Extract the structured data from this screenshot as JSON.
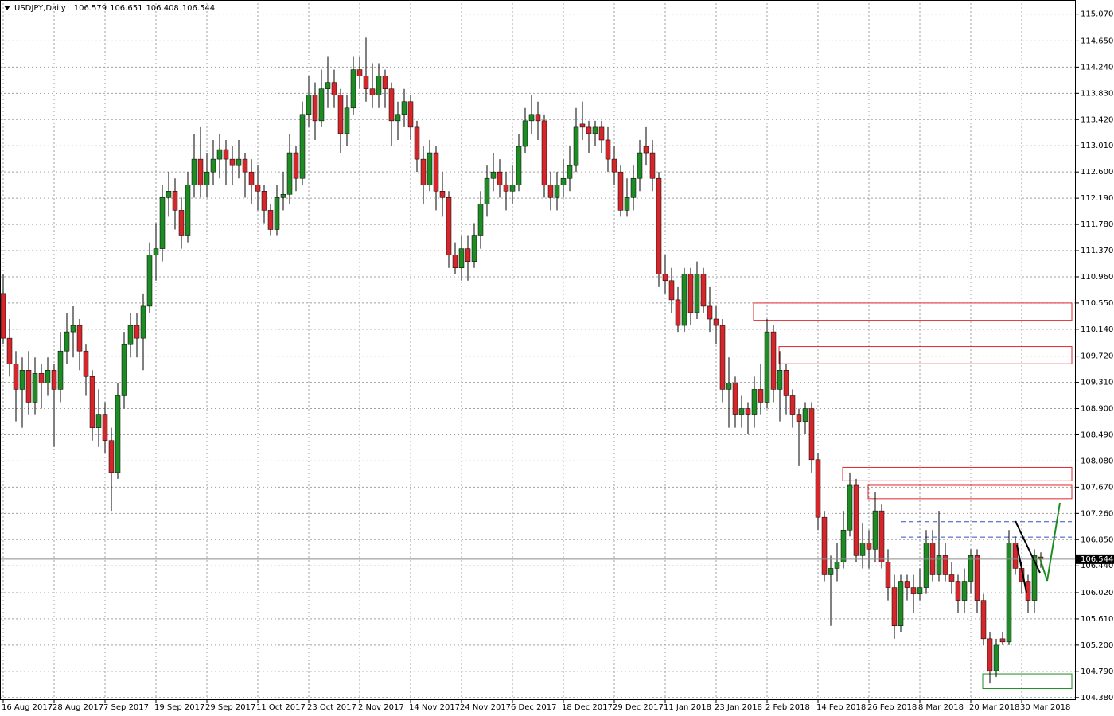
{
  "chart_data": {
    "type": "candlestick",
    "symbol": "USDJPY,Daily",
    "quote": [
      106.579,
      106.651,
      106.408,
      106.544
    ],
    "last_price": 106.544,
    "up_color": "#1f8b24",
    "down_color": "#d3272b",
    "grid": true,
    "ylim": [
      104.34,
      115.24
    ],
    "yticks": [
      {
        "value": 115.07,
        "label": "115.070"
      },
      {
        "value": 114.65,
        "label": "114.650"
      },
      {
        "value": 114.24,
        "label": "114.240"
      },
      {
        "value": 113.83,
        "label": "113.830"
      },
      {
        "value": 113.42,
        "label": "113.420"
      },
      {
        "value": 113.01,
        "label": "113.010"
      },
      {
        "value": 112.6,
        "label": "112.600"
      },
      {
        "value": 112.19,
        "label": "112.190"
      },
      {
        "value": 111.78,
        "label": "111.780"
      },
      {
        "value": 111.37,
        "label": "111.370"
      },
      {
        "value": 110.96,
        "label": "110.960"
      },
      {
        "value": 110.55,
        "label": "110.550"
      },
      {
        "value": 110.14,
        "label": "110.140"
      },
      {
        "value": 109.72,
        "label": "109.720"
      },
      {
        "value": 109.31,
        "label": "109.310"
      },
      {
        "value": 108.9,
        "label": "108.900"
      },
      {
        "value": 108.49,
        "label": "108.490"
      },
      {
        "value": 108.08,
        "label": "108.080"
      },
      {
        "value": 107.67,
        "label": "107.670"
      },
      {
        "value": 107.26,
        "label": "107.260"
      },
      {
        "value": 106.85,
        "label": "106.850"
      },
      {
        "value": 106.44,
        "label": "106.440"
      },
      {
        "value": 106.02,
        "label": "106.020"
      },
      {
        "value": 105.61,
        "label": "105.610"
      },
      {
        "value": 105.2,
        "label": "105.200"
      },
      {
        "value": 104.79,
        "label": "104.790"
      },
      {
        "value": 104.38,
        "label": "104.380"
      }
    ],
    "categories": [
      "16 Aug 2017",
      null,
      null,
      null,
      null,
      null,
      null,
      null,
      "28 Aug 2017",
      null,
      null,
      null,
      null,
      null,
      null,
      null,
      "7 Sep 2017",
      null,
      null,
      null,
      null,
      null,
      null,
      null,
      "19 Sep 2017",
      null,
      null,
      null,
      null,
      null,
      null,
      null,
      "29 Sep 2017",
      null,
      null,
      null,
      null,
      null,
      null,
      null,
      "11 Oct 2017",
      null,
      null,
      null,
      null,
      null,
      null,
      null,
      "23 Oct 2017",
      null,
      null,
      null,
      null,
      null,
      null,
      null,
      "2 Nov 2017",
      null,
      null,
      null,
      null,
      null,
      null,
      null,
      "14 Nov 2017",
      null,
      null,
      null,
      null,
      null,
      null,
      null,
      "24 Nov 2017",
      null,
      null,
      null,
      null,
      null,
      null,
      null,
      "6 Dec 2017",
      null,
      null,
      null,
      null,
      null,
      null,
      null,
      "18 Dec 2017",
      null,
      null,
      null,
      null,
      null,
      null,
      null,
      "29 Dec 2017",
      null,
      null,
      null,
      null,
      null,
      null,
      null,
      "11 Jan 2018",
      null,
      null,
      null,
      null,
      null,
      null,
      null,
      "23 Jan 2018",
      null,
      null,
      null,
      null,
      null,
      null,
      null,
      "2 Feb 2018",
      null,
      null,
      null,
      null,
      null,
      null,
      null,
      "14 Feb 2018",
      null,
      null,
      null,
      null,
      null,
      null,
      null,
      "26 Feb 2018",
      null,
      null,
      null,
      null,
      null,
      null,
      null,
      "8 Mar 2018",
      null,
      null,
      null,
      null,
      null,
      null,
      null,
      "20 Mar 2018",
      null,
      null,
      null,
      null,
      null,
      null,
      null,
      "30 Mar 2018",
      null,
      null,
      null
    ],
    "ohlc": [
      [
        110.7,
        111.0,
        109.9,
        110.0
      ],
      [
        110.0,
        110.3,
        109.4,
        109.6
      ],
      [
        109.6,
        109.8,
        108.7,
        109.2
      ],
      [
        109.2,
        109.7,
        108.6,
        109.5
      ],
      [
        109.5,
        109.8,
        108.8,
        109.0
      ],
      [
        109.0,
        109.7,
        108.8,
        109.45
      ],
      [
        109.45,
        109.6,
        108.9,
        109.3
      ],
      [
        109.3,
        109.7,
        109.1,
        109.5
      ],
      [
        109.5,
        109.6,
        108.3,
        109.2
      ],
      [
        109.2,
        110.1,
        109.0,
        109.8
      ],
      [
        109.8,
        110.4,
        109.6,
        110.1
      ],
      [
        110.1,
        110.5,
        109.7,
        110.2
      ],
      [
        110.2,
        110.3,
        109.5,
        109.8
      ],
      [
        109.8,
        109.9,
        109.1,
        109.4
      ],
      [
        109.4,
        109.5,
        108.4,
        108.6
      ],
      [
        108.6,
        109.2,
        108.3,
        108.8
      ],
      [
        108.8,
        109.0,
        108.2,
        108.4
      ],
      [
        108.4,
        108.6,
        107.3,
        107.9
      ],
      [
        107.9,
        109.3,
        107.8,
        109.1
      ],
      [
        109.1,
        110.1,
        108.9,
        109.9
      ],
      [
        109.9,
        110.4,
        109.7,
        110.2
      ],
      [
        110.2,
        110.4,
        109.7,
        110.0
      ],
      [
        110.0,
        110.7,
        109.5,
        110.5
      ],
      [
        110.5,
        111.5,
        110.4,
        111.3
      ],
      [
        111.3,
        111.8,
        110.9,
        111.4
      ],
      [
        111.4,
        112.4,
        111.2,
        112.2
      ],
      [
        112.2,
        112.6,
        111.9,
        112.3
      ],
      [
        112.3,
        112.5,
        111.7,
        112.0
      ],
      [
        112.0,
        112.2,
        111.4,
        111.6
      ],
      [
        111.6,
        112.6,
        111.5,
        112.4
      ],
      [
        112.4,
        113.2,
        112.2,
        112.8
      ],
      [
        112.8,
        113.3,
        112.2,
        112.4
      ],
      [
        112.4,
        112.9,
        112.2,
        112.6
      ],
      [
        112.6,
        113.1,
        112.4,
        112.8
      ],
      [
        112.8,
        113.2,
        112.5,
        112.95
      ],
      [
        112.95,
        113.1,
        112.4,
        112.8
      ],
      [
        112.8,
        113.0,
        112.4,
        112.7
      ],
      [
        112.7,
        113.1,
        112.5,
        112.8
      ],
      [
        112.8,
        112.9,
        112.2,
        112.6
      ],
      [
        112.6,
        112.8,
        112.1,
        112.4
      ],
      [
        112.4,
        112.7,
        112.0,
        112.3
      ],
      [
        112.3,
        112.4,
        111.8,
        112.0
      ],
      [
        112.0,
        112.1,
        111.6,
        111.7
      ],
      [
        111.7,
        112.4,
        111.6,
        112.2
      ],
      [
        112.2,
        112.6,
        112.0,
        112.25
      ],
      [
        112.25,
        113.2,
        112.1,
        112.9
      ],
      [
        112.9,
        113.0,
        112.3,
        112.5
      ],
      [
        112.5,
        113.7,
        112.4,
        113.5
      ],
      [
        113.5,
        114.1,
        113.3,
        113.8
      ],
      [
        113.8,
        114.0,
        113.1,
        113.4
      ],
      [
        113.4,
        114.2,
        113.3,
        113.9
      ],
      [
        113.9,
        114.4,
        113.6,
        114.0
      ],
      [
        114.0,
        114.2,
        113.6,
        113.8
      ],
      [
        113.8,
        113.9,
        112.9,
        113.2
      ],
      [
        113.2,
        113.8,
        113.0,
        113.6
      ],
      [
        113.6,
        114.4,
        113.5,
        114.2
      ],
      [
        114.2,
        114.4,
        113.9,
        114.1
      ],
      [
        114.1,
        114.7,
        113.7,
        113.9
      ],
      [
        113.9,
        114.3,
        113.6,
        113.8
      ],
      [
        113.8,
        114.3,
        113.6,
        114.1
      ],
      [
        114.1,
        114.2,
        113.6,
        113.9
      ],
      [
        113.9,
        114.0,
        113.0,
        113.4
      ],
      [
        113.4,
        113.7,
        113.1,
        113.5
      ],
      [
        113.5,
        113.9,
        113.3,
        113.7
      ],
      [
        113.7,
        113.8,
        113.1,
        113.3
      ],
      [
        113.3,
        113.4,
        112.6,
        112.8
      ],
      [
        112.8,
        113.0,
        112.1,
        112.4
      ],
      [
        112.4,
        113.1,
        112.3,
        112.9
      ],
      [
        112.9,
        113.0,
        112.0,
        112.3
      ],
      [
        112.3,
        112.6,
        111.9,
        112.2
      ],
      [
        112.2,
        112.3,
        111.1,
        111.3
      ],
      [
        111.3,
        111.5,
        111.0,
        111.1
      ],
      [
        111.1,
        111.6,
        110.9,
        111.4
      ],
      [
        111.4,
        111.6,
        110.9,
        111.2
      ],
      [
        111.2,
        111.8,
        111.1,
        111.6
      ],
      [
        111.6,
        112.3,
        111.4,
        112.1
      ],
      [
        112.1,
        112.7,
        111.9,
        112.5
      ],
      [
        112.5,
        112.9,
        112.3,
        112.6
      ],
      [
        112.6,
        112.8,
        112.2,
        112.4
      ],
      [
        112.4,
        112.6,
        112.0,
        112.3
      ],
      [
        112.3,
        112.7,
        112.1,
        112.4
      ],
      [
        112.4,
        113.2,
        112.3,
        113.0
      ],
      [
        113.0,
        113.6,
        112.9,
        113.4
      ],
      [
        113.4,
        113.8,
        113.2,
        113.5
      ],
      [
        113.5,
        113.7,
        113.1,
        113.4
      ],
      [
        113.4,
        113.5,
        112.2,
        112.4
      ],
      [
        112.4,
        112.6,
        112.0,
        112.2
      ],
      [
        112.2,
        112.6,
        112.0,
        112.4
      ],
      [
        112.4,
        112.8,
        112.2,
        112.5
      ],
      [
        112.5,
        113.0,
        112.3,
        112.7
      ],
      [
        112.7,
        113.6,
        112.6,
        113.3
      ],
      [
        113.35,
        113.7,
        113.1,
        113.3
      ],
      [
        113.3,
        113.4,
        112.9,
        113.2
      ],
      [
        113.2,
        113.4,
        113.0,
        113.3
      ],
      [
        113.3,
        113.4,
        112.9,
        113.1
      ],
      [
        113.1,
        113.3,
        112.6,
        112.8
      ],
      [
        112.8,
        113.0,
        112.4,
        112.6
      ],
      [
        112.6,
        112.7,
        111.9,
        112.0
      ],
      [
        112.0,
        112.5,
        111.9,
        112.2
      ],
      [
        112.2,
        112.7,
        112.0,
        112.5
      ],
      [
        112.5,
        113.1,
        112.3,
        112.9
      ],
      [
        113.0,
        113.3,
        112.7,
        112.9
      ],
      [
        112.9,
        113.1,
        112.3,
        112.5
      ],
      [
        112.5,
        112.6,
        110.8,
        111.0
      ],
      [
        111.0,
        111.3,
        110.7,
        110.9
      ],
      [
        110.9,
        111.1,
        110.4,
        110.6
      ],
      [
        110.6,
        110.8,
        110.1,
        110.2
      ],
      [
        110.2,
        111.1,
        110.1,
        111.0
      ],
      [
        111.0,
        111.1,
        110.2,
        110.4
      ],
      [
        110.4,
        111.2,
        110.3,
        111.0
      ],
      [
        111.0,
        111.1,
        110.4,
        110.5
      ],
      [
        110.5,
        110.8,
        110.1,
        110.3
      ],
      [
        110.3,
        110.5,
        109.9,
        110.2
      ],
      [
        110.2,
        110.3,
        109.0,
        109.2
      ],
      [
        109.2,
        109.7,
        108.6,
        109.3
      ],
      [
        109.3,
        109.4,
        108.6,
        108.8
      ],
      [
        108.8,
        109.1,
        108.6,
        108.9
      ],
      [
        108.9,
        109.0,
        108.5,
        108.8
      ],
      [
        108.8,
        109.4,
        108.6,
        109.2
      ],
      [
        109.2,
        109.6,
        108.8,
        109.0
      ],
      [
        109.0,
        110.3,
        108.9,
        110.1
      ],
      [
        110.1,
        110.2,
        109.0,
        109.2
      ],
      [
        109.2,
        109.8,
        108.7,
        109.5
      ],
      [
        109.5,
        109.6,
        108.8,
        109.1
      ],
      [
        109.1,
        109.2,
        108.6,
        108.8
      ],
      [
        108.8,
        108.9,
        108.0,
        108.7
      ],
      [
        108.7,
        109.0,
        108.5,
        108.9
      ],
      [
        108.9,
        109.0,
        107.9,
        108.1
      ],
      [
        108.1,
        108.2,
        107.0,
        107.2
      ],
      [
        107.2,
        107.3,
        106.2,
        106.3
      ],
      [
        106.3,
        106.6,
        105.5,
        106.4
      ],
      [
        106.4,
        106.8,
        106.2,
        106.5
      ],
      [
        106.5,
        107.3,
        106.4,
        107.0
      ],
      [
        107.0,
        107.9,
        106.9,
        107.7
      ],
      [
        107.7,
        107.8,
        106.5,
        106.6
      ],
      [
        106.6,
        107.1,
        106.4,
        106.8
      ],
      [
        106.8,
        107.0,
        106.4,
        106.7
      ],
      [
        106.7,
        107.6,
        106.5,
        107.3
      ],
      [
        107.3,
        107.4,
        106.4,
        106.5
      ],
      [
        106.5,
        106.7,
        105.9,
        106.1
      ],
      [
        106.1,
        106.3,
        105.3,
        105.5
      ],
      [
        105.5,
        106.3,
        105.4,
        106.2
      ],
      [
        106.2,
        106.3,
        105.9,
        106.1
      ],
      [
        106.1,
        106.3,
        105.7,
        106.0
      ],
      [
        106.0,
        106.4,
        105.9,
        106.1
      ],
      [
        106.1,
        107.0,
        106.0,
        106.8
      ],
      [
        106.8,
        107.0,
        106.2,
        106.3
      ],
      [
        106.3,
        107.3,
        106.2,
        106.6
      ],
      [
        106.6,
        106.8,
        106.2,
        106.3
      ],
      [
        106.3,
        106.5,
        106.0,
        106.2
      ],
      [
        106.2,
        106.3,
        105.7,
        105.9
      ],
      [
        105.9,
        106.4,
        105.7,
        106.2
      ],
      [
        106.2,
        106.7,
        106.0,
        106.6
      ],
      [
        106.6,
        106.7,
        105.7,
        105.9
      ],
      [
        105.9,
        106.0,
        105.2,
        105.3
      ],
      [
        105.3,
        105.4,
        104.6,
        104.8
      ],
      [
        104.8,
        105.3,
        104.7,
        105.2
      ],
      [
        105.3,
        105.4,
        105.2,
        105.25
      ],
      [
        105.25,
        107.0,
        105.2,
        106.8
      ],
      [
        106.8,
        106.9,
        106.3,
        106.4
      ],
      [
        106.4,
        106.5,
        106.0,
        106.2
      ],
      [
        106.2,
        106.3,
        105.7,
        105.9
      ],
      [
        105.9,
        106.7,
        105.7,
        106.6
      ],
      [
        106.579,
        106.651,
        106.408,
        106.544
      ]
    ],
    "zones": [
      {
        "start": 118,
        "high": 110.55,
        "low": 110.28,
        "color": "#e0282e"
      },
      {
        "start": 122,
        "high": 109.87,
        "low": 109.6,
        "color": "#e0282e"
      },
      {
        "start": 132,
        "high": 107.98,
        "low": 107.77,
        "color": "#e0282e"
      },
      {
        "start": 136,
        "high": 107.7,
        "low": 107.49,
        "color": "#e0282e"
      },
      {
        "start": 154,
        "high": 104.75,
        "low": 104.52,
        "color": "#1f8b24"
      }
    ],
    "levels": [
      {
        "start": 141,
        "value": 107.13,
        "color": "#3050c8"
      },
      {
        "start": 141,
        "value": 106.89,
        "color": "#3050c8"
      }
    ]
  }
}
